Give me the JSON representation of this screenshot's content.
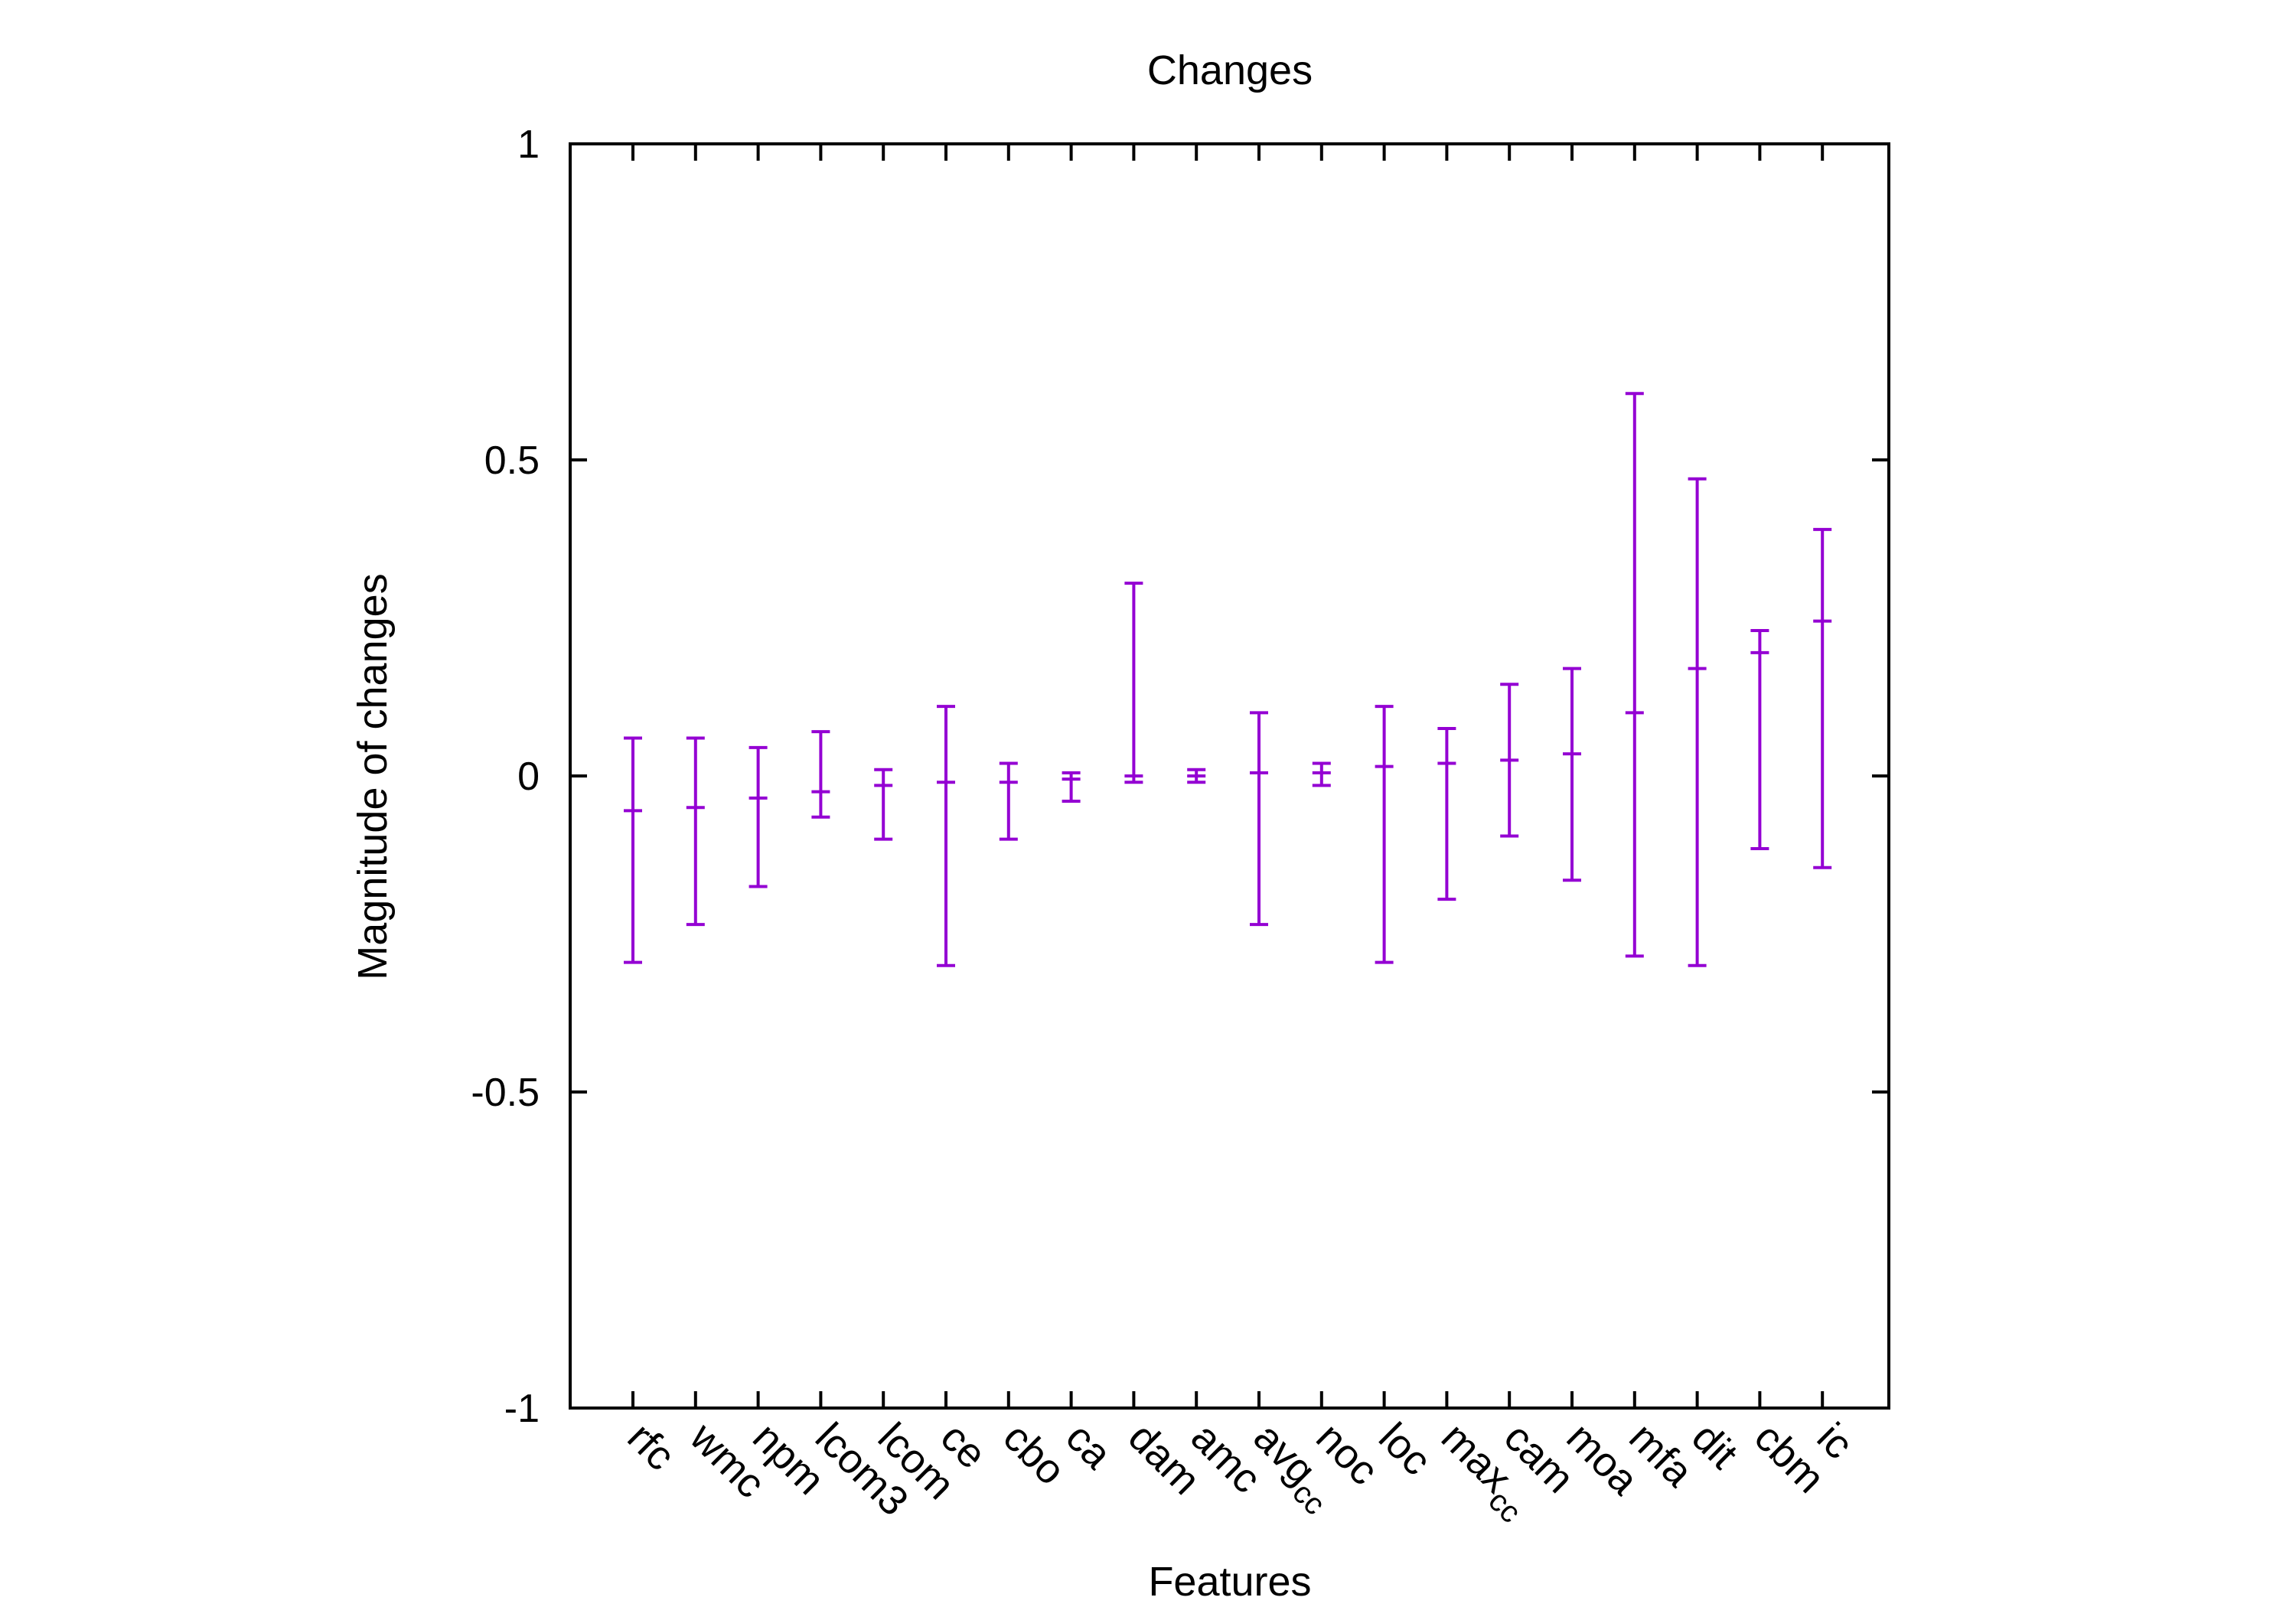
{
  "chart_data": {
    "type": "errorbar",
    "title": "Changes",
    "xlabel": "Features",
    "ylabel": "Magnitude of changes",
    "ylim": [
      -1,
      1
    ],
    "yticks": [
      -1,
      -0.5,
      0,
      0.5,
      1
    ],
    "ytick_labels": [
      "-1",
      "-0.5",
      "0",
      "0.5",
      "1"
    ],
    "grid": false,
    "colors": {
      "series": "#9400d3",
      "axis": "#000000"
    },
    "categories": [
      {
        "main": "rfc",
        "sub": ""
      },
      {
        "main": "wmc",
        "sub": ""
      },
      {
        "main": "npm",
        "sub": ""
      },
      {
        "main": "lcom3",
        "sub": ""
      },
      {
        "main": "lcom",
        "sub": ""
      },
      {
        "main": "ce",
        "sub": ""
      },
      {
        "main": "cbo",
        "sub": ""
      },
      {
        "main": "ca",
        "sub": ""
      },
      {
        "main": "dam",
        "sub": ""
      },
      {
        "main": "amc",
        "sub": ""
      },
      {
        "main": "avg",
        "sub": "cc"
      },
      {
        "main": "noc",
        "sub": ""
      },
      {
        "main": "loc",
        "sub": ""
      },
      {
        "main": "max",
        "sub": "cc"
      },
      {
        "main": "cam",
        "sub": ""
      },
      {
        "main": "moa",
        "sub": ""
      },
      {
        "main": "mfa",
        "sub": ""
      },
      {
        "main": "dit",
        "sub": ""
      },
      {
        "main": "cbm",
        "sub": ""
      },
      {
        "main": "ic",
        "sub": ""
      }
    ],
    "values": [
      -0.055,
      -0.05,
      -0.035,
      -0.025,
      -0.015,
      -0.01,
      -0.01,
      -0.005,
      0.0,
      0.0,
      0.005,
      0.005,
      0.015,
      0.02,
      0.025,
      0.035,
      0.1,
      0.17,
      0.195,
      0.245
    ],
    "lower": [
      -0.295,
      -0.235,
      -0.175,
      -0.065,
      -0.1,
      -0.3,
      -0.1,
      -0.04,
      -0.01,
      -0.01,
      -0.235,
      -0.015,
      -0.295,
      -0.195,
      -0.095,
      -0.165,
      -0.285,
      -0.3,
      -0.115,
      -0.145
    ],
    "upper": [
      0.06,
      0.06,
      0.045,
      0.07,
      0.01,
      0.11,
      0.02,
      0.005,
      0.305,
      0.01,
      0.1,
      0.02,
      0.11,
      0.075,
      0.145,
      0.17,
      0.605,
      0.47,
      0.23,
      0.39
    ]
  }
}
